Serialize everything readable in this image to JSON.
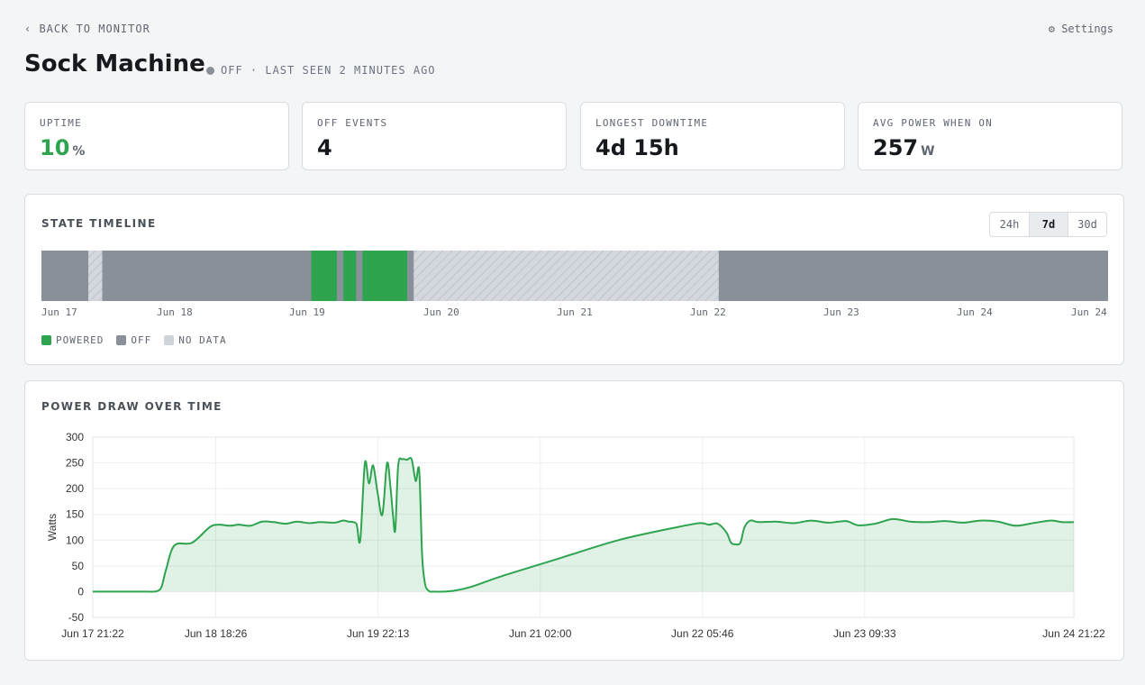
{
  "header": {
    "back_label": "‹ BACK TO MONITOR",
    "settings_label": "⚙ Settings",
    "device_name": "Sock Machine",
    "status_text": "OFF · LAST SEEN 2 MINUTES AGO"
  },
  "stats": [
    {
      "label": "UPTIME",
      "value": "10",
      "unit": "%"
    },
    {
      "label": "OFF EVENTS",
      "value": "4",
      "unit": ""
    },
    {
      "label": "LONGEST DOWNTIME",
      "value": "4d 15h",
      "unit": ""
    },
    {
      "label": "AVG POWER WHEN ON",
      "value": "257",
      "unit": "W"
    }
  ],
  "timeline": {
    "title": "STATE TIMELINE",
    "ranges": [
      "24h",
      "7d",
      "30d"
    ],
    "active_range": "7d",
    "ticks": [
      "Jun 17",
      "Jun 18",
      "Jun 19",
      "Jun 20",
      "Jun 21",
      "Jun 22",
      "Jun 23",
      "Jun 24",
      "Jun 24"
    ],
    "legend": [
      "POWERED",
      "OFF",
      "NO DATA"
    ],
    "colors": {
      "powered": "#2ea44f",
      "off": "#8a9099",
      "nodata": "#cfd4da"
    },
    "segments": [
      {
        "state": "off",
        "start": 0.0,
        "end": 0.044
      },
      {
        "state": "nodata",
        "start": 0.044,
        "end": 0.057
      },
      {
        "state": "off",
        "start": 0.057,
        "end": 0.253
      },
      {
        "state": "powered",
        "start": 0.253,
        "end": 0.277
      },
      {
        "state": "off",
        "start": 0.277,
        "end": 0.283
      },
      {
        "state": "powered",
        "start": 0.283,
        "end": 0.295
      },
      {
        "state": "off",
        "start": 0.295,
        "end": 0.301
      },
      {
        "state": "powered",
        "start": 0.301,
        "end": 0.343
      },
      {
        "state": "off",
        "start": 0.343,
        "end": 0.349
      },
      {
        "state": "nodata",
        "start": 0.349,
        "end": 0.635
      },
      {
        "state": "off",
        "start": 0.635,
        "end": 1.0
      }
    ]
  },
  "power": {
    "title": "POWER DRAW OVER TIME"
  },
  "chart_data": {
    "type": "area",
    "ylabel": "Watts",
    "xlabel": "",
    "ylim": [
      -50,
      300
    ],
    "yticks": [
      -50,
      0,
      50,
      100,
      150,
      200,
      250,
      300
    ],
    "xticks": [
      "Jun 17 21:22",
      "Jun 18 18:26",
      "Jun 19 22:13",
      "Jun 21 02:00",
      "Jun 22 05:46",
      "Jun 23 09:33",
      "Jun 24 21:22"
    ],
    "xtick_hours": [
      0,
      21.07,
      48.85,
      76.63,
      104.4,
      132.18,
      168
    ],
    "grid": true,
    "color": "#2ea44f",
    "x_hours": [
      0,
      7,
      9.2,
      10.5,
      11.2,
      11.8,
      12.6,
      14,
      17,
      20,
      21.5,
      23.5,
      25,
      27,
      29,
      31,
      33,
      35,
      37,
      39,
      41.5,
      42.8,
      43.8,
      44.6,
      45.2,
      45.8,
      46.6,
      47.3,
      48,
      48.8,
      49.6,
      50.4,
      51,
      51.4,
      51.8,
      52.3,
      53,
      53.8,
      54.6,
      55.3,
      55.9,
      56.4,
      56.9,
      57.4,
      57.8,
      58.3,
      60,
      62,
      65,
      70,
      80,
      90,
      100,
      104,
      105.5,
      107,
      108.5,
      109.3,
      110.1,
      110.9,
      111.6,
      112.6,
      114,
      117,
      120,
      123,
      126,
      129,
      131,
      134,
      137,
      140,
      143,
      146,
      149,
      152,
      155,
      158,
      161,
      164,
      166,
      168
    ],
    "y_watts": [
      0,
      0,
      0,
      0,
      2,
      10,
      45,
      90,
      95,
      125,
      130,
      128,
      130,
      128,
      136,
      135,
      132,
      136,
      133,
      135,
      134,
      138,
      136,
      135,
      130,
      100,
      250,
      210,
      245,
      190,
      150,
      250,
      200,
      150,
      120,
      245,
      257,
      256,
      257,
      215,
      235,
      70,
      15,
      3,
      0,
      0,
      0,
      2,
      10,
      30,
      65,
      100,
      125,
      133,
      130,
      132,
      115,
      95,
      92,
      95,
      125,
      138,
      135,
      136,
      133,
      138,
      134,
      137,
      129,
      132,
      141,
      136,
      135,
      137,
      134,
      138,
      136,
      128,
      133,
      138,
      135,
      135
    ]
  }
}
